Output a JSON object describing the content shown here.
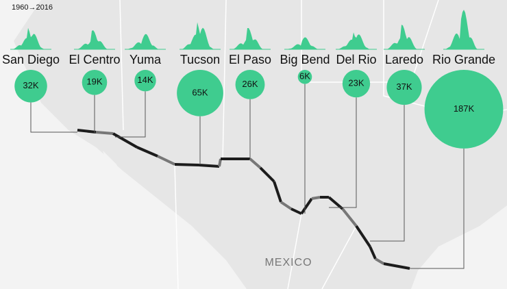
{
  "header": {
    "period": "1960→2016"
  },
  "map": {
    "country_label": "MEXICO"
  },
  "sectors": [
    {
      "name": "San Diego",
      "value": 32000,
      "value_label": "32K"
    },
    {
      "name": "El Centro",
      "value": 19000,
      "value_label": "19K"
    },
    {
      "name": "Yuma",
      "value": 14000,
      "value_label": "14K"
    },
    {
      "name": "Tucson",
      "value": 65000,
      "value_label": "65K"
    },
    {
      "name": "El Paso",
      "value": 26000,
      "value_label": "26K"
    },
    {
      "name": "Big Bend",
      "value": 6000,
      "value_label": "6K"
    },
    {
      "name": "Del Rio",
      "value": 23000,
      "value_label": "23K"
    },
    {
      "name": "Laredo",
      "value": 37000,
      "value_label": "37K"
    },
    {
      "name": "Rio Grande",
      "value": 187000,
      "value_label": "187K"
    }
  ],
  "color": "#3fcc8f"
}
